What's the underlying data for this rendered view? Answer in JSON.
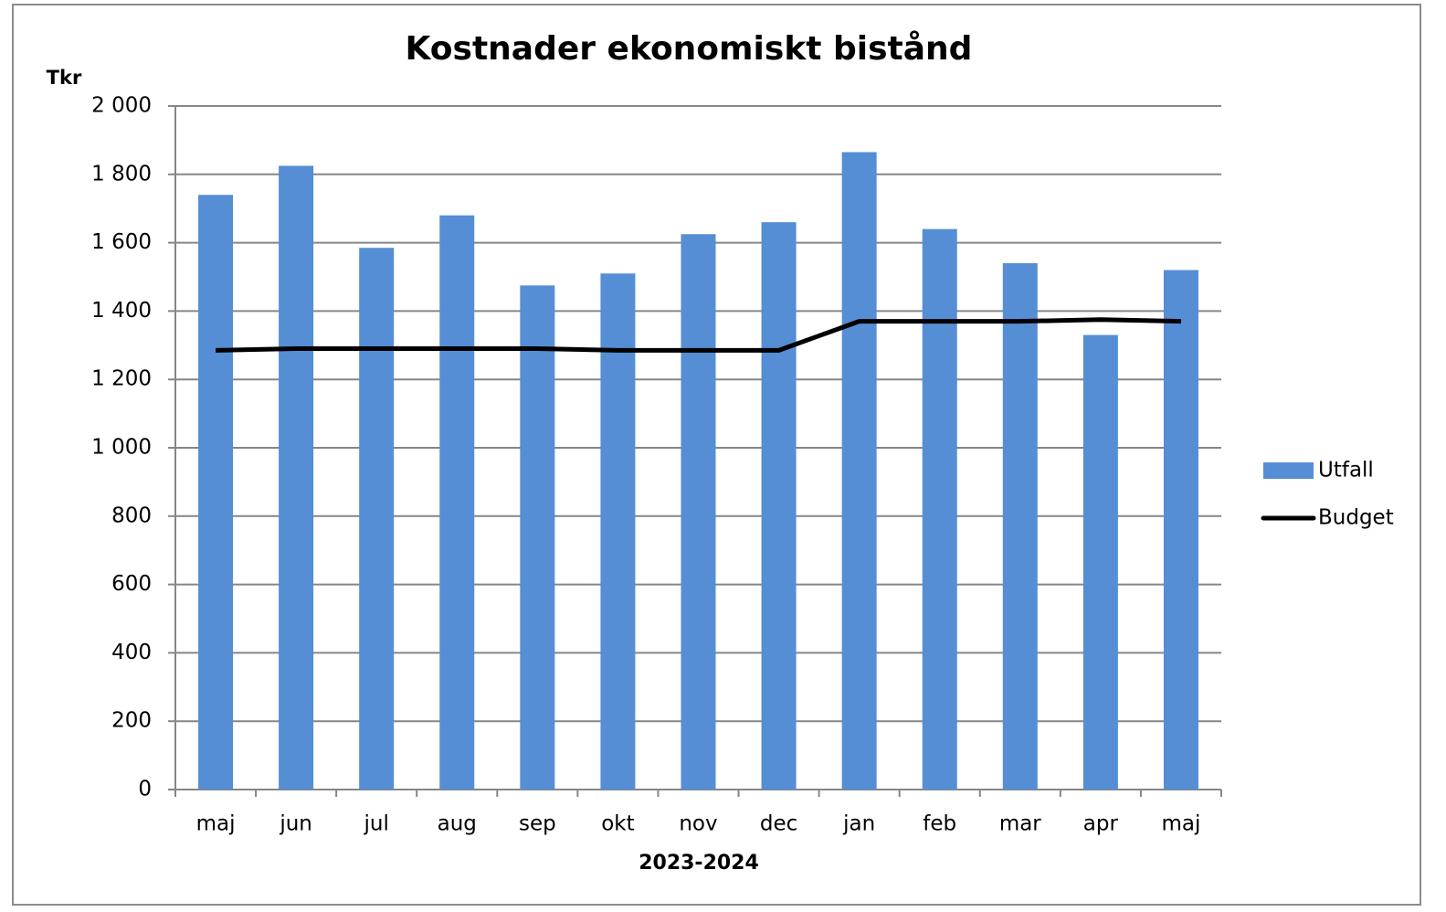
{
  "chart_data": {
    "type": "bar",
    "title": "Kostnader ekonomiskt bistånd",
    "y_axis_label": "Tkr",
    "x_axis_label": "2023-2024",
    "categories": [
      "maj",
      "jun",
      "jul",
      "aug",
      "sep",
      "okt",
      "nov",
      "dec",
      "jan",
      "feb",
      "mar",
      "apr",
      "maj"
    ],
    "series": [
      {
        "name": "Utfall",
        "type": "bar",
        "color": "#558ed5",
        "values": [
          1740,
          1825,
          1585,
          1680,
          1475,
          1510,
          1625,
          1660,
          1865,
          1640,
          1540,
          1330,
          1520
        ]
      },
      {
        "name": "Budget",
        "type": "line",
        "color": "#000000",
        "values": [
          1285,
          1290,
          1290,
          1290,
          1290,
          1285,
          1285,
          1285,
          1370,
          1370,
          1370,
          1375,
          1370
        ]
      }
    ],
    "ylim": [
      0,
      2000
    ],
    "yticks": [
      0,
      200,
      400,
      600,
      800,
      {
        "value": 1000,
        "label": "1 000"
      },
      {
        "value": 1200,
        "label": "1 200"
      },
      {
        "value": 1400,
        "label": "1 400"
      },
      {
        "value": 1600,
        "label": "1 600"
      },
      {
        "value": 1800,
        "label": "1 800"
      },
      {
        "value": 2000,
        "label": "2 000"
      }
    ],
    "grid": true,
    "legend": "right"
  }
}
